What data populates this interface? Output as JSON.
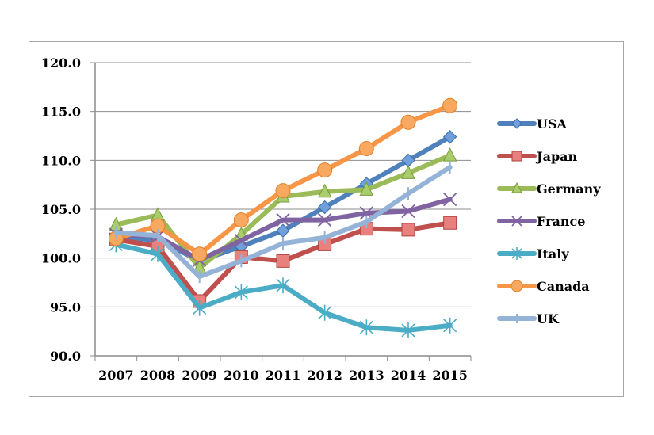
{
  "chart_data": {
    "type": "line",
    "title": "",
    "xlabel": "",
    "ylabel": "",
    "ylim": [
      90.0,
      120.0
    ],
    "yticks": [
      "90.0",
      "95.0",
      "100.0",
      "105.0",
      "110.0",
      "115.0",
      "120.0"
    ],
    "ytick_values": [
      90,
      95,
      100,
      105,
      110,
      115,
      120
    ],
    "grid": true,
    "legend_position": "right",
    "categories": [
      "2007",
      "2008",
      "2009",
      "2010",
      "2011",
      "2012",
      "2013",
      "2014",
      "2015"
    ],
    "series": [
      {
        "name": "USA",
        "color": "#4f81bd",
        "marker": "diamond",
        "values": [
          102.0,
          101.9,
          99.7,
          101.2,
          102.8,
          105.2,
          107.6,
          110.0,
          112.4
        ]
      },
      {
        "name": "Japan",
        "color": "#c0504d",
        "marker": "square",
        "values": [
          101.9,
          101.2,
          95.6,
          100.1,
          99.7,
          101.4,
          103.0,
          102.9,
          103.6
        ]
      },
      {
        "name": "Germany",
        "color": "#9bbb59",
        "marker": "triangle",
        "values": [
          103.4,
          104.4,
          99.0,
          102.4,
          106.3,
          106.8,
          107.0,
          108.7,
          110.5
        ]
      },
      {
        "name": "France",
        "color": "#8064a2",
        "marker": "x",
        "values": [
          102.4,
          102.2,
          99.8,
          101.8,
          103.9,
          103.9,
          104.6,
          104.8,
          106.0
        ]
      },
      {
        "name": "Italy",
        "color": "#4bacc6",
        "marker": "star",
        "values": [
          101.4,
          100.4,
          94.9,
          96.5,
          97.2,
          94.4,
          92.9,
          92.6,
          93.1
        ]
      },
      {
        "name": "Canada",
        "color": "#f79646",
        "marker": "circle",
        "values": [
          102.0,
          103.3,
          100.4,
          103.9,
          106.9,
          109.0,
          111.2,
          113.9,
          115.6
        ]
      },
      {
        "name": "UK",
        "color": "#95b3d7",
        "marker": "plus",
        "values": [
          102.6,
          102.3,
          98.1,
          99.7,
          101.5,
          102.1,
          103.7,
          106.6,
          109.3
        ]
      }
    ]
  }
}
